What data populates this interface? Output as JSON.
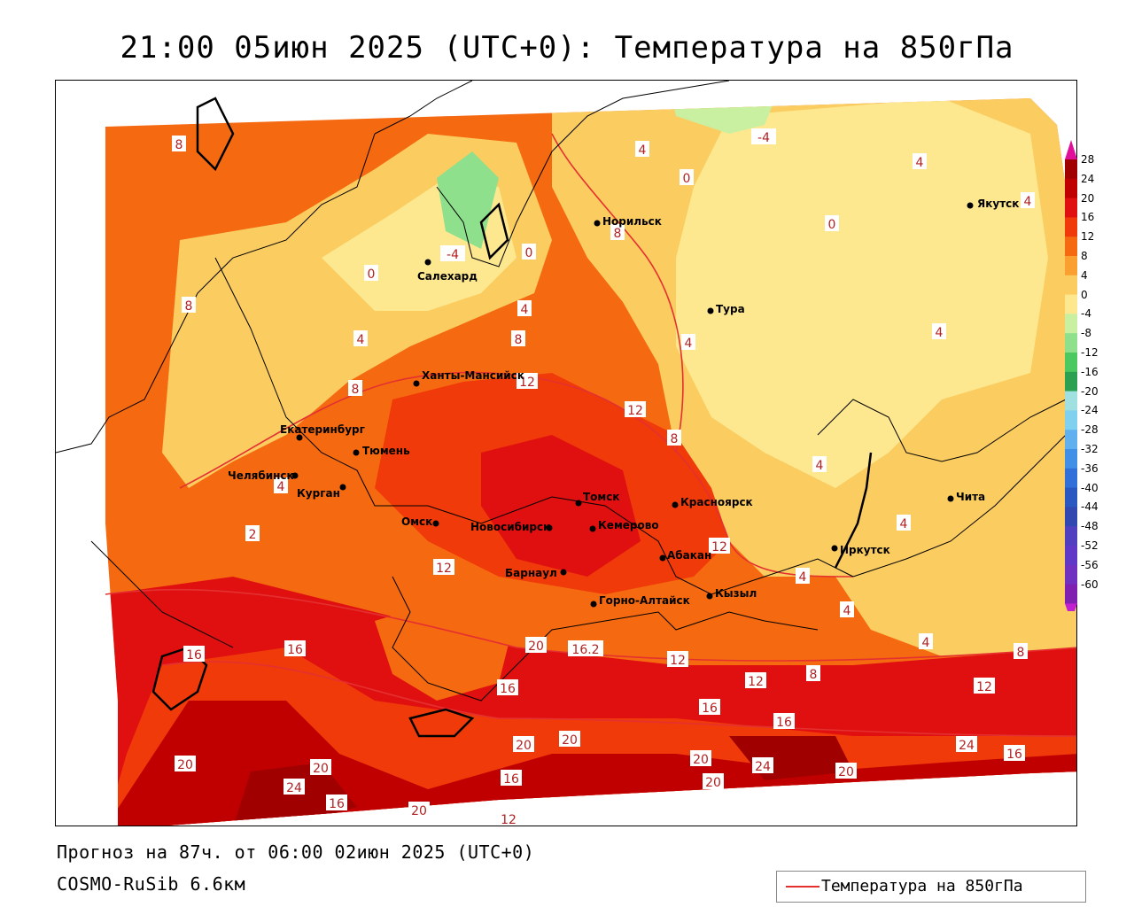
{
  "title": "21:00 05июн 2025 (UTC+0): Температура на 850гПа",
  "footer": {
    "forecast": "Прогноз на 87ч. от 06:00 02июн 2025 (UTC+0)",
    "model": "COSMO-RuSib 6.6км"
  },
  "legend": {
    "label": "Температура на 850гПа",
    "line_color": "#e53030"
  },
  "colorbar": {
    "ticks": [
      "28",
      "24",
      "20",
      "16",
      "12",
      "8",
      "4",
      "0",
      "-4",
      "-8",
      "-12",
      "-16",
      "-20",
      "-24",
      "-28",
      "-32",
      "-36",
      "-40",
      "-44",
      "-48",
      "-52",
      "-56",
      "-60"
    ],
    "colors": [
      "#a00000",
      "#c00000",
      "#e01010",
      "#f03a0a",
      "#f56a10",
      "#f9a030",
      "#fbcc60",
      "#fde890",
      "#c8f0a0",
      "#8ee08c",
      "#4cc860",
      "#2aa050",
      "#a0e0e0",
      "#80d0f0",
      "#60b0f0",
      "#4090e8",
      "#3070d8",
      "#2858c0",
      "#3048b0",
      "#5040c0",
      "#6038c8",
      "#7030c0",
      "#8020b0"
    ]
  },
  "cities": [
    {
      "name": "Норильск"
    },
    {
      "name": "Якутск"
    },
    {
      "name": "Салехард"
    },
    {
      "name": "Тура"
    },
    {
      "name": "Ханты-Мансийск"
    },
    {
      "name": "Екатеринбург"
    },
    {
      "name": "Тюмень"
    },
    {
      "name": "Челябинск"
    },
    {
      "name": "Курган"
    },
    {
      "name": "Томск"
    },
    {
      "name": "Красноярск"
    },
    {
      "name": "Омск"
    },
    {
      "name": "Новосибирск"
    },
    {
      "name": "Кемерово"
    },
    {
      "name": "Абакан"
    },
    {
      "name": "Барнаул"
    },
    {
      "name": "Горно-Алтайск"
    },
    {
      "name": "Кызыл"
    },
    {
      "name": "Иркутск"
    },
    {
      "name": "Чита"
    }
  ],
  "isoline_labels": [
    "8",
    "4",
    "0",
    "-4",
    "-4",
    "4",
    "4",
    "0",
    "4",
    "0",
    "8",
    "0",
    "4",
    "4",
    "8",
    "8",
    "4",
    "4",
    "4",
    "8",
    "12",
    "12",
    "12",
    "8",
    "4",
    "4",
    "4",
    "2",
    "4",
    "12",
    "20",
    "16.2",
    "12",
    "8",
    "12",
    "8",
    "16",
    "16",
    "12",
    "16",
    "16",
    "16",
    "20",
    "20",
    "20",
    "20",
    "24",
    "20",
    "16",
    "24",
    "16",
    "20",
    "12",
    "20",
    "16",
    "20",
    "24"
  ]
}
